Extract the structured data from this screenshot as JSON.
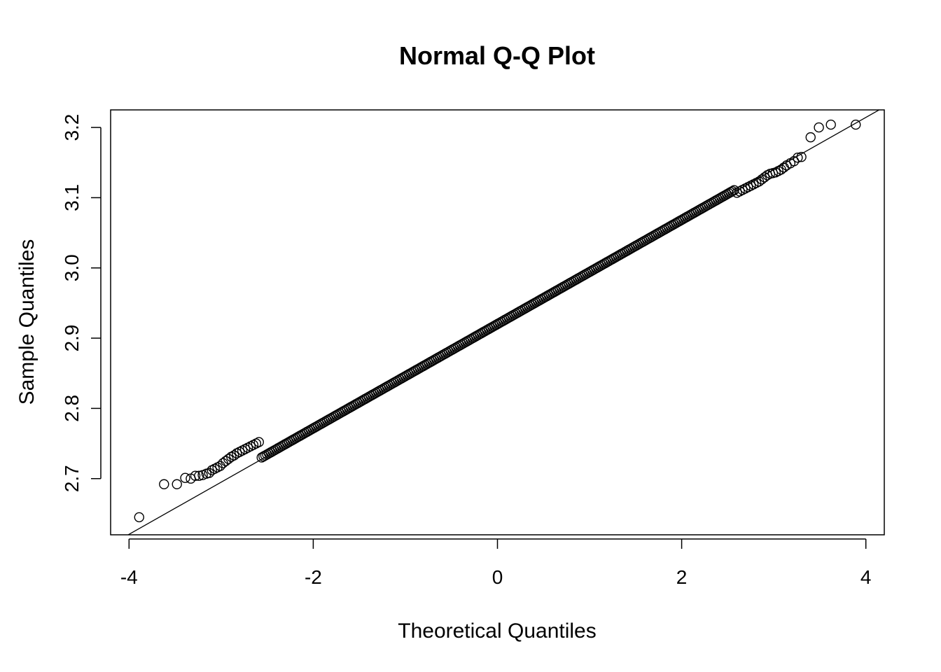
{
  "chart_data": {
    "type": "scatter",
    "title": "Normal Q-Q Plot",
    "xlabel": "Theoretical Quantiles",
    "ylabel": "Sample Quantiles",
    "xlim": [
      -4.2,
      4.2
    ],
    "ylim": [
      2.62,
      3.225
    ],
    "x_ticks": [
      -4,
      -2,
      0,
      2,
      4
    ],
    "x_tick_labels": [
      "-4",
      "-2",
      "0",
      "2",
      "4"
    ],
    "y_ticks": [
      2.7,
      2.8,
      2.9,
      3.0,
      3.1,
      3.2
    ],
    "y_tick_labels": [
      "2.7",
      "2.8",
      "2.9",
      "3.0",
      "3.1",
      "3.2"
    ],
    "grid": false,
    "legend": "none",
    "reference_line": {
      "slope": 0.0742,
      "intercept": 2.9175
    },
    "series": [
      {
        "points": [
          [
            -3.89,
            2.645
          ],
          [
            -3.62,
            2.692
          ],
          [
            -3.48,
            2.692
          ],
          [
            -3.39,
            2.701
          ],
          [
            -3.33,
            2.7
          ],
          [
            -3.28,
            2.704
          ],
          [
            -3.24,
            2.704
          ],
          [
            -3.2,
            2.705
          ],
          [
            -3.16,
            2.707
          ],
          [
            -3.13,
            2.708
          ],
          [
            -3.1,
            2.712
          ],
          [
            -3.07,
            2.714
          ],
          [
            -3.04,
            2.716
          ],
          [
            -3.01,
            2.718
          ],
          [
            -2.98,
            2.722
          ],
          [
            -2.95,
            2.725
          ],
          [
            -2.92,
            2.728
          ],
          [
            -2.89,
            2.731
          ],
          [
            -2.86,
            2.733
          ],
          [
            -2.83,
            2.736
          ],
          [
            -2.8,
            2.738
          ],
          [
            -2.77,
            2.74
          ],
          [
            -2.74,
            2.742
          ],
          [
            -2.71,
            2.744
          ],
          [
            -2.68,
            2.746
          ],
          [
            -2.65,
            2.748
          ],
          [
            -2.62,
            2.75
          ],
          [
            -2.59,
            2.752
          ],
          [
            3.3,
            3.158
          ],
          [
            3.26,
            3.157
          ],
          [
            3.22,
            3.152
          ],
          [
            3.18,
            3.149
          ],
          [
            3.14,
            3.146
          ],
          [
            3.11,
            3.143
          ],
          [
            3.08,
            3.14
          ],
          [
            3.05,
            3.138
          ],
          [
            3.02,
            3.136
          ],
          [
            2.99,
            3.135
          ],
          [
            2.96,
            3.134
          ],
          [
            2.93,
            3.132
          ],
          [
            2.9,
            3.129
          ],
          [
            2.87,
            3.126
          ],
          [
            2.84,
            3.123
          ],
          [
            2.81,
            3.121
          ],
          [
            2.78,
            3.119
          ],
          [
            2.75,
            3.117
          ],
          [
            2.72,
            3.115
          ],
          [
            2.69,
            3.113
          ],
          [
            2.66,
            3.111
          ],
          [
            2.63,
            3.109
          ],
          [
            2.6,
            3.107
          ],
          [
            3.4,
            3.186
          ],
          [
            3.49,
            3.2
          ],
          [
            3.62,
            3.204
          ],
          [
            3.89,
            3.204
          ]
        ],
        "dense_band": {
          "x_from": -2.56,
          "x_to": 2.57,
          "count": 260
        }
      }
    ]
  }
}
